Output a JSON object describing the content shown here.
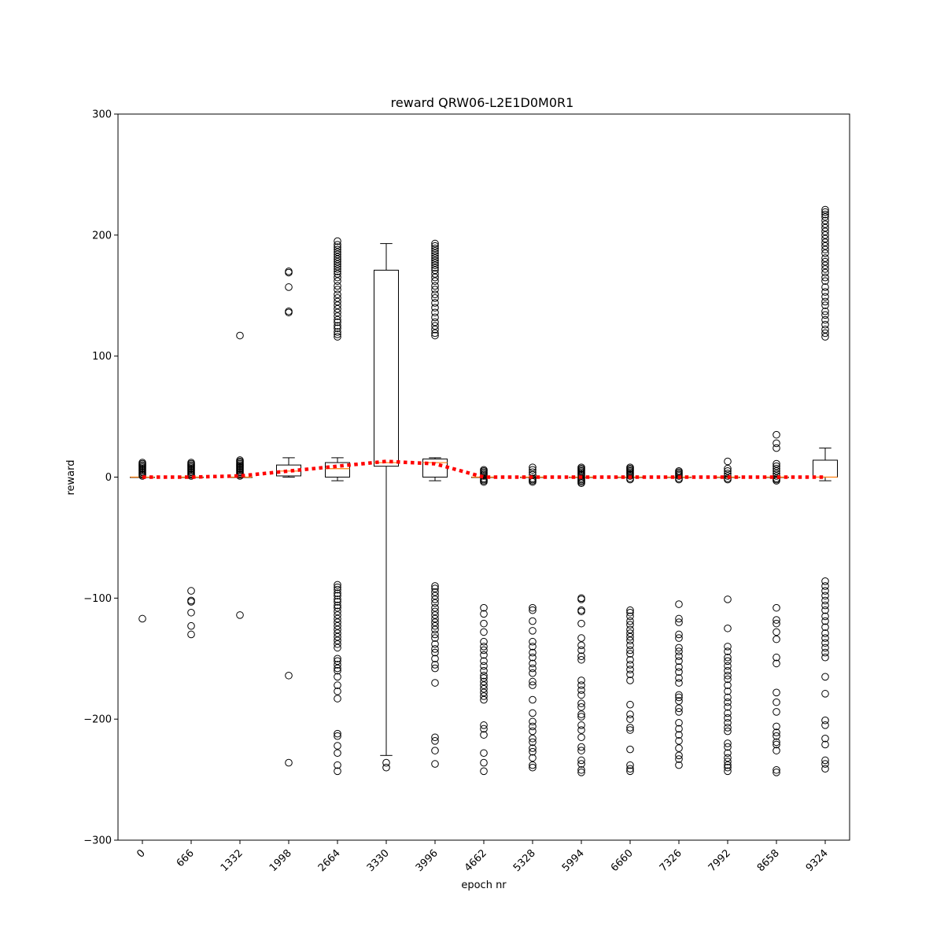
{
  "chart_data": {
    "type": "boxplot",
    "title": "reward QRW06-L2E1D0M0R1",
    "xlabel": "epoch nr",
    "ylabel": "reward",
    "ylim": [
      -300,
      300
    ],
    "yticks": [
      -300,
      -200,
      -100,
      0,
      100,
      200,
      300
    ],
    "ytick_labels": [
      "−300",
      "−200",
      "−100",
      "0",
      "100",
      "200",
      "300"
    ],
    "categories": [
      "0",
      "666",
      "1332",
      "1998",
      "2664",
      "3330",
      "3996",
      "4662",
      "5328",
      "5994",
      "6660",
      "7326",
      "7992",
      "8658",
      "9324"
    ],
    "boxes": [
      {
        "q1": 0,
        "median": 0,
        "q3": 0,
        "whislo": 0,
        "whishi": 0
      },
      {
        "q1": 0,
        "median": 0,
        "q3": 0,
        "whislo": 0,
        "whishi": 0
      },
      {
        "q1": 0,
        "median": 0,
        "q3": 0,
        "whislo": 0,
        "whishi": 0
      },
      {
        "q1": 1,
        "median": 5,
        "q3": 10,
        "whislo": 0,
        "whishi": 16
      },
      {
        "q1": 0,
        "median": 7,
        "q3": 12,
        "whislo": -3,
        "whishi": 16
      },
      {
        "q1": 9,
        "median": 12,
        "q3": 171,
        "whislo": -230,
        "whishi": 193
      },
      {
        "q1": 0,
        "median": 12,
        "q3": 15,
        "whislo": -3,
        "whishi": 16
      },
      {
        "q1": 0,
        "median": 0,
        "q3": 0,
        "whislo": 0,
        "whishi": 0
      },
      {
        "q1": 0,
        "median": 0,
        "q3": 0,
        "whislo": 0,
        "whishi": 0
      },
      {
        "q1": 0,
        "median": 0,
        "q3": 0,
        "whislo": 0,
        "whishi": 0
      },
      {
        "q1": 0,
        "median": 0,
        "q3": 0,
        "whislo": 0,
        "whishi": 0
      },
      {
        "q1": 0,
        "median": 0,
        "q3": 0,
        "whislo": 0,
        "whishi": 0
      },
      {
        "q1": 0,
        "median": 0,
        "q3": 0,
        "whislo": 0,
        "whishi": 0
      },
      {
        "q1": 0,
        "median": 0,
        "q3": 0,
        "whislo": 0,
        "whishi": 0
      },
      {
        "q1": 0,
        "median": 0,
        "q3": 14,
        "whislo": -3,
        "whishi": 24
      }
    ],
    "mean_line": {
      "color": "#ff0000",
      "style": "dotted",
      "values": [
        0,
        0,
        1,
        5,
        9,
        13,
        11,
        0,
        0,
        0,
        0,
        0,
        0,
        0,
        0
      ]
    },
    "outliers": [
      [
        12,
        11,
        10,
        9,
        8,
        7,
        6,
        5,
        4,
        3,
        2,
        1,
        -117
      ],
      [
        12,
        11,
        10,
        9,
        8,
        7,
        6,
        5,
        4,
        3,
        2,
        1,
        -94,
        -102,
        -103,
        -112,
        -123,
        -130
      ],
      [
        14,
        13,
        12,
        11,
        10,
        9,
        8,
        7,
        6,
        5,
        4,
        3,
        2,
        1,
        117,
        -114
      ],
      [
        170,
        169,
        157,
        137,
        136,
        -164,
        -236
      ],
      [
        195,
        192,
        190,
        188,
        186,
        184,
        182,
        180,
        178,
        176,
        174,
        172,
        170,
        168,
        165,
        162,
        158,
        155,
        151,
        148,
        145,
        142,
        139,
        136,
        133,
        130,
        128,
        125,
        123,
        120,
        118,
        116,
        -89,
        -91,
        -93,
        -96,
        -98,
        -101,
        -103,
        -106,
        -108,
        -111,
        -114,
        -117,
        -120,
        -123,
        -126,
        -129,
        -132,
        -135,
        -138,
        -141,
        -150,
        -152,
        -155,
        -158,
        -160,
        -165,
        -172,
        -177,
        -183,
        -212,
        -214,
        -222,
        -228,
        -238,
        -243
      ],
      [
        -236,
        -240
      ],
      [
        193,
        191,
        189,
        187,
        185,
        183,
        181,
        179,
        177,
        175,
        173,
        171,
        168,
        165,
        162,
        158,
        155,
        151,
        148,
        144,
        140,
        136,
        132,
        128,
        125,
        122,
        119,
        117,
        -90,
        -92,
        -95,
        -98,
        -101,
        -104,
        -108,
        -111,
        -114,
        -117,
        -120,
        -123,
        -126,
        -130,
        -133,
        -138,
        -142,
        -145,
        -150,
        -155,
        -158,
        -170,
        -215,
        -218,
        -226,
        -237
      ],
      [
        6,
        5,
        4,
        3,
        2,
        1,
        -1,
        -2,
        -3,
        -4,
        -108,
        -113,
        -121,
        -128,
        -136,
        -140,
        -143,
        -147,
        -152,
        -156,
        -160,
        -164,
        -166,
        -169,
        -172,
        -175,
        -178,
        -181,
        -184,
        -205,
        -208,
        -213,
        -228,
        -236,
        -243
      ],
      [
        8,
        6,
        4,
        2,
        -1,
        -2,
        -3,
        -4,
        -108,
        -110,
        -119,
        -127,
        -136,
        -140,
        -145,
        -149,
        -154,
        -158,
        -162,
        -169,
        -172,
        -184,
        -195,
        -202,
        -206,
        -210,
        -216,
        -219,
        -224,
        -227,
        -232,
        -238,
        -240
      ],
      [
        8,
        7,
        6,
        5,
        4,
        3,
        2,
        1,
        -1,
        -2,
        -3,
        -4,
        -5,
        -100,
        -101,
        -110,
        -111,
        -121,
        -133,
        -139,
        -143,
        -148,
        -151,
        -168,
        -172,
        -176,
        -180,
        -187,
        -190,
        -196,
        -198,
        -205,
        -209,
        -215,
        -223,
        -226,
        -234,
        -237,
        -242,
        -244
      ],
      [
        8,
        7,
        6,
        5,
        4,
        3,
        2,
        1,
        -1,
        -2,
        -110,
        -112,
        -115,
        -119,
        -122,
        -126,
        -129,
        -132,
        -135,
        -139,
        -143,
        -146,
        -151,
        -155,
        -159,
        -163,
        -168,
        -188,
        -196,
        -200,
        -207,
        -209,
        -225,
        -238,
        -241,
        -243
      ],
      [
        5,
        4,
        3,
        2,
        1,
        -1,
        -2,
        -105,
        -117,
        -120,
        -130,
        -133,
        -141,
        -144,
        -148,
        -152,
        -157,
        -161,
        -166,
        -170,
        -180,
        -182,
        -185,
        -191,
        -194,
        -203,
        -208,
        -213,
        -218,
        -224,
        -230,
        -233,
        -238
      ],
      [
        13,
        7,
        5,
        3,
        1,
        -1,
        -2,
        -101,
        -125,
        -140,
        -144,
        -149,
        -152,
        -156,
        -160,
        -164,
        -167,
        -172,
        -177,
        -182,
        -186,
        -190,
        -195,
        -199,
        -203,
        -207,
        -210,
        -220,
        -223,
        -228,
        -232,
        -235,
        -238,
        -240,
        -243
      ],
      [
        35,
        28,
        24,
        11,
        9,
        7,
        5,
        3,
        1,
        -1,
        -2,
        -3,
        -108,
        -118,
        -121,
        -128,
        -134,
        -149,
        -154,
        -178,
        -186,
        -194,
        -206,
        -211,
        -214,
        -219,
        -221,
        -226,
        -242,
        -244
      ],
      [
        221,
        219,
        217,
        215,
        212,
        209,
        206,
        203,
        200,
        197,
        194,
        191,
        188,
        185,
        181,
        178,
        175,
        172,
        169,
        165,
        162,
        157,
        153,
        149,
        145,
        142,
        137,
        134,
        130,
        126,
        122,
        119,
        116,
        -86,
        -90,
        -94,
        -98,
        -102,
        -106,
        -110,
        -115,
        -119,
        -124,
        -129,
        -133,
        -137,
        -141,
        -145,
        -149,
        -165,
        -179,
        -201,
        -205,
        -216,
        -221,
        -234,
        -237,
        -241
      ]
    ]
  }
}
